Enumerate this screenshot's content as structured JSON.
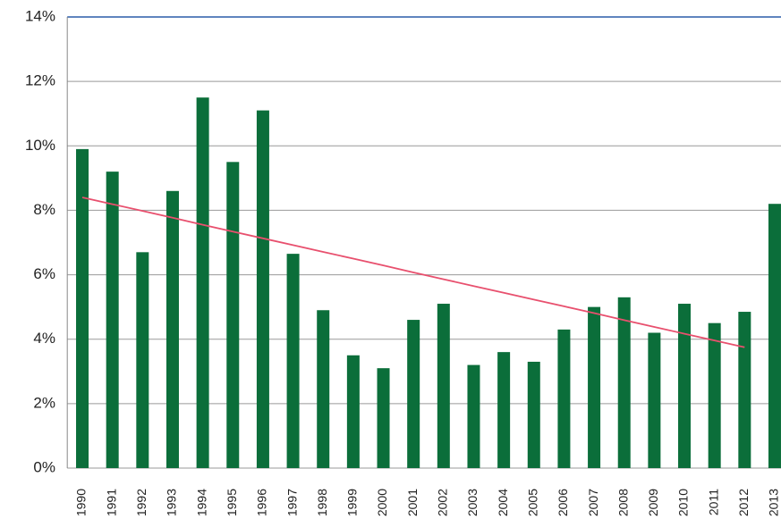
{
  "chart_data": {
    "type": "bar",
    "categories": [
      "1990",
      "1991",
      "1992",
      "1993",
      "1994",
      "1995",
      "1996",
      "1997",
      "1998",
      "1999",
      "2000",
      "2001",
      "2002",
      "2003",
      "2004",
      "2005",
      "2006",
      "2007",
      "2008",
      "2009",
      "2010",
      "2011",
      "2012",
      "2013"
    ],
    "series": [
      {
        "type": "bar",
        "color": "#0b6e3a",
        "values": [
          9.9,
          9.2,
          6.7,
          8.6,
          11.5,
          9.5,
          11.1,
          6.65,
          4.9,
          3.5,
          3.1,
          4.6,
          5.1,
          3.2,
          3.6,
          3.3,
          4.3,
          5.0,
          5.3,
          4.2,
          5.1,
          4.5,
          4.85,
          8.2
        ]
      },
      {
        "type": "line",
        "color": "#e8506e",
        "values": [
          8.4,
          8.19,
          7.98,
          7.77,
          7.55,
          7.34,
          7.13,
          6.92,
          6.71,
          6.5,
          6.29,
          6.07,
          5.86,
          5.65,
          5.44,
          5.23,
          5.02,
          4.81,
          4.59,
          4.38,
          4.17,
          3.96,
          3.75,
          null
        ]
      }
    ],
    "ylim": [
      0,
      14
    ],
    "yticks": [
      {
        "value": 0,
        "label": "0%"
      },
      {
        "value": 2,
        "label": "2%"
      },
      {
        "value": 4,
        "label": "4%"
      },
      {
        "value": 6,
        "label": "6%"
      },
      {
        "value": 8,
        "label": "8%"
      },
      {
        "value": 10,
        "label": "10%"
      },
      {
        "value": 12,
        "label": "12%"
      },
      {
        "value": 14,
        "label": "14%"
      }
    ],
    "grid": true
  }
}
